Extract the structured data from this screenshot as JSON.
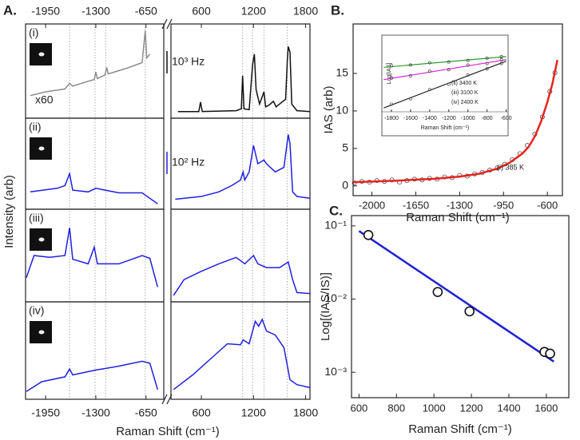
{
  "chart_data": [
    {
      "type": "spectra",
      "title": "A.",
      "xlabel": "Raman Shift (cm⁻¹)",
      "ylabel": "Intensity (arb)",
      "ylim": [
        0,
        100
      ],
      "segments": [
        {
          "xlim": [
            -2210,
            -420
          ],
          "xticks": [
            -1950,
            -1300,
            -650
          ],
          "reference_lines": [
            -1640,
            -1310,
            -1170,
            -660
          ]
        },
        {
          "xlim": [
            250,
            1850
          ],
          "xticks": [
            600,
            1200,
            1800
          ],
          "reference_lines": [
            1075,
            1190,
            1320,
            1590
          ]
        }
      ],
      "panels": [
        {
          "label": "(i)",
          "annotation": "x60",
          "scale_bar": "10³ Hz",
          "scale_bar_color": "#111",
          "series": [
            {
              "segment": 0,
              "color": "#8c8c8c",
              "x": [
                -2150,
                -1950,
                -1700,
                -1640,
                -1600,
                -1450,
                -1320,
                -1300,
                -1280,
                -1180,
                -1160,
                -1140,
                -900,
                -700,
                -660,
                -640,
                -600
              ],
              "values": [
                24,
                28,
                31,
                37,
                34,
                38,
                41,
                49,
                42,
                46,
                54,
                47,
                53,
                59,
                93,
                64,
                68
              ]
            },
            {
              "segment": 1,
              "color": "#111111",
              "x": [
                330,
                570,
                590,
                610,
                1000,
                1060,
                1075,
                1090,
                1150,
                1190,
                1210,
                1230,
                1270,
                1320,
                1340,
                1380,
                1430,
                1460,
                1500,
                1570,
                1590,
                1600,
                1620,
                1640,
                1700,
                1850
              ],
              "values": [
                7,
                7,
                17,
                7,
                8,
                10,
                45,
                10,
                9,
                57,
                68,
                30,
                15,
                28,
                12,
                14,
                18,
                12,
                15,
                20,
                62,
                76,
                70,
                15,
                8,
                7
              ]
            }
          ]
        },
        {
          "label": "(ii)",
          "scale_bar": "10² Hz",
          "scale_bar_color": "#2020e0",
          "series": [
            {
              "segment": 0,
              "color": "#2020e0",
              "x": [
                -2150,
                -1800,
                -1700,
                -1640,
                -1600,
                -1400,
                -1300,
                -1000,
                -700,
                -500
              ],
              "values": [
                19,
                23,
                26,
                39,
                21,
                19,
                23,
                18,
                18,
                6
              ]
            },
            {
              "segment": 1,
              "color": "#2020e0",
              "x": [
                300,
                600,
                800,
                950,
                1050,
                1080,
                1100,
                1150,
                1200,
                1250,
                1320,
                1350,
                1450,
                1550,
                1600,
                1620,
                1650,
                1700,
                1850
              ],
              "values": [
                11,
                14,
                19,
                26,
                32,
                41,
                32,
                41,
                70,
                50,
                54,
                50,
                41,
                46,
                82,
                72,
                19,
                14,
                12
              ]
            }
          ]
        },
        {
          "label": "(iii)",
          "series": [
            {
              "segment": 0,
              "color": "#2020e0",
              "x": [
                -2200,
                -2100,
                -1900,
                -1700,
                -1640,
                -1600,
                -1400,
                -1320,
                -1280,
                -1000,
                -700,
                -600,
                -500
              ],
              "values": [
                26,
                50,
                48,
                50,
                80,
                46,
                41,
                59,
                41,
                41,
                50,
                47,
                16
              ]
            },
            {
              "segment": 1,
              "color": "#2020e0",
              "x": [
                280,
                400,
                600,
                800,
                1000,
                1100,
                1200,
                1250,
                1350,
                1500,
                1600,
                1650,
                1700,
                1850
              ],
              "values": [
                7,
                24,
                33,
                41,
                48,
                41,
                50,
                41,
                37,
                37,
                43,
                24,
                10,
                9
              ]
            }
          ]
        },
        {
          "label": "(iv)",
          "series": [
            {
              "segment": 0,
              "color": "#2020e0",
              "x": [
                -2200,
                -2000,
                -1700,
                -1640,
                -1600,
                -1300,
                -1000,
                -700,
                -600,
                -500
              ],
              "values": [
                8,
                18,
                23,
                31,
                25,
                30,
                34,
                39,
                37,
                10
              ]
            },
            {
              "segment": 1,
              "color": "#2020e0",
              "x": [
                280,
                500,
                700,
                900,
                1050,
                1080,
                1150,
                1220,
                1260,
                1300,
                1350,
                1450,
                1550,
                1620,
                1700,
                1850
              ],
              "values": [
                10,
                25,
                41,
                57,
                56,
                61,
                57,
                80,
                75,
                82,
                70,
                66,
                53,
                20,
                15,
                12
              ]
            }
          ]
        }
      ]
    },
    {
      "type": "scatter",
      "title": "B.",
      "xlabel": "Raman Shift (cm⁻¹)",
      "ylabel": "IAS (arb)",
      "xlim": [
        -2150,
        -480
      ],
      "ylim": [
        -1.3,
        21.6
      ],
      "xticks": [
        -2000,
        -1650,
        -1300,
        -950,
        -600
      ],
      "yticks": [
        0,
        5,
        10,
        15
      ],
      "series": [
        {
          "style": "markers",
          "color": "#333333",
          "x": [
            -2140,
            -2080,
            -2020,
            -1960,
            -1900,
            -1840,
            -1780,
            -1720,
            -1660,
            -1600,
            -1540,
            -1480,
            -1420,
            -1360,
            -1300,
            -1240,
            -1180,
            -1120,
            -1060,
            -1000,
            -940,
            -880,
            -820,
            -760,
            -700,
            -640,
            -580,
            -540
          ],
          "values": [
            0.4,
            0.6,
            0.5,
            0.7,
            0.6,
            0.8,
            0.5,
            0.7,
            0.9,
            0.8,
            1.0,
            0.9,
            1.2,
            1.1,
            1.4,
            1.3,
            1.6,
            1.8,
            2.1,
            2.4,
            2.9,
            3.5,
            4.3,
            5.4,
            6.9,
            9.2,
            12.6,
            15.1
          ]
        },
        {
          "style": "line",
          "name": "(i) 385 K",
          "color": "#e8231f",
          "x": [
            -2150,
            -1800,
            -1500,
            -1300,
            -1150,
            -1000,
            -900,
            -800,
            -750,
            -700,
            -650,
            -600,
            -560,
            -520
          ],
          "values": [
            0.5,
            0.7,
            0.95,
            1.25,
            1.6,
            2.3,
            3.1,
            4.3,
            5.2,
            6.6,
            8.6,
            11.2,
            13.6,
            16.8
          ]
        }
      ]
    },
    {
      "type": "scatter",
      "xlabel": "Raman Shift (cm⁻¹)",
      "ylabel": "Log[IAS]",
      "xlim": [
        -1900,
        -580
      ],
      "ylim": [
        0,
        1
      ],
      "xticks": [
        -1800,
        -1600,
        -1400,
        -1200,
        -1000,
        -800,
        -600
      ],
      "series": [
        {
          "style": "line",
          "name": "(ii) 3400 K",
          "color": "#2e9a2e",
          "x": [
            -1880,
            -600
          ],
          "values": [
            0.58,
            0.72
          ]
        },
        {
          "style": "line",
          "name": "(iii) 3100 K",
          "color": "#d81fd8",
          "x": [
            -1880,
            -600
          ],
          "values": [
            0.42,
            0.68
          ]
        },
        {
          "style": "line",
          "name": "(iv) 2400 K",
          "color": "#222222",
          "x": [
            -1880,
            -600
          ],
          "values": [
            0.05,
            0.66
          ]
        },
        {
          "style": "markers",
          "color": "#444444",
          "x": [
            -1800,
            -1600,
            -1400,
            -1200,
            -1000,
            -800,
            -650
          ],
          "values": [
            0.6,
            0.61,
            0.64,
            0.65,
            0.67,
            0.7,
            0.72
          ]
        },
        {
          "style": "markers",
          "color": "#444444",
          "x": [
            -1800,
            -1600,
            -1400,
            -1200,
            -1000,
            -800,
            -650
          ],
          "values": [
            0.44,
            0.47,
            0.53,
            0.55,
            0.61,
            0.63,
            0.68
          ]
        },
        {
          "style": "markers",
          "color": "#444444",
          "x": [
            -1800,
            -1600,
            -1400,
            -1200,
            -1000,
            -800,
            -650
          ],
          "values": [
            0.1,
            0.17,
            0.29,
            0.36,
            0.48,
            0.56,
            0.63
          ]
        }
      ]
    },
    {
      "type": "scatter",
      "title": "C.",
      "xlabel": "Raman Shift (cm⁻¹)",
      "ylabel": "Log[(IAS/IS)]",
      "log_y": true,
      "xlim": [
        560,
        1720
      ],
      "ylim": [
        0.00045,
        0.138
      ],
      "xticks": [
        600,
        800,
        1000,
        1200,
        1400,
        1600
      ],
      "yticks": [
        {
          "value": 0.1,
          "label": "10⁻¹"
        },
        {
          "value": 0.01,
          "label": "10⁻²"
        },
        {
          "value": 0.001,
          "label": "10⁻³"
        }
      ],
      "series": [
        {
          "style": "line",
          "color": "#1f1fd6",
          "x": [
            600,
            1640
          ],
          "values": [
            0.085,
            0.0014
          ]
        },
        {
          "style": "markers",
          "color": "#111111",
          "x": [
            650,
            1020,
            1190,
            1590,
            1620
          ],
          "values": [
            0.075,
            0.0125,
            0.0068,
            0.0019,
            0.0018
          ]
        }
      ]
    }
  ]
}
